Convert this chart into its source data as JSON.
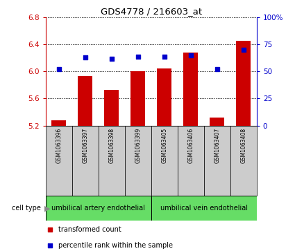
{
  "title": "GDS4778 / 216603_at",
  "samples": [
    "GSM1063396",
    "GSM1063397",
    "GSM1063398",
    "GSM1063399",
    "GSM1063405",
    "GSM1063406",
    "GSM1063407",
    "GSM1063408"
  ],
  "transformed_count": [
    5.28,
    5.93,
    5.73,
    6.0,
    6.05,
    6.28,
    5.32,
    6.46
  ],
  "percentile_rank": [
    52,
    63,
    62,
    64,
    64,
    65,
    52,
    70
  ],
  "bar_color": "#cc0000",
  "dot_color": "#0000cc",
  "ylim_left": [
    5.2,
    6.8
  ],
  "ylim_right": [
    0,
    100
  ],
  "yticks_left": [
    5.2,
    5.6,
    6.0,
    6.4,
    6.8
  ],
  "yticks_right": [
    0,
    25,
    50,
    75,
    100
  ],
  "ytick_labels_left": [
    "5.2",
    "5.6",
    "6.0",
    "6.4",
    "6.8"
  ],
  "ytick_labels_right": [
    "0",
    "25",
    "50",
    "75",
    "100%"
  ],
  "cell_types": [
    {
      "label": "umbilical artery endothelial",
      "color": "#66dd66",
      "start": 0,
      "end": 4
    },
    {
      "label": "umbilical vein endothelial",
      "color": "#66dd66",
      "start": 4,
      "end": 8
    }
  ],
  "cell_type_label": "cell type",
  "legend_items": [
    {
      "color": "#cc0000",
      "label": "transformed count"
    },
    {
      "color": "#0000cc",
      "label": "percentile rank within the sample"
    }
  ],
  "bar_width": 0.55,
  "background_color": "#ffffff",
  "plot_bg_color": "#ffffff",
  "tick_color_left": "#cc0000",
  "tick_color_right": "#0000cc",
  "xticklabel_bg": "#cccccc"
}
